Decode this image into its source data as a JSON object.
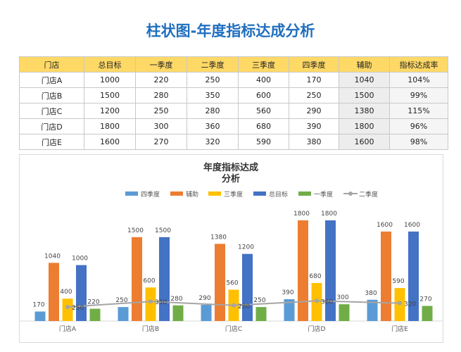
{
  "page_title": "柱状图-年度指标达成分析",
  "table": {
    "headers": [
      "门店",
      "总目标",
      "一季度",
      "二季度",
      "三季度",
      "四季度",
      "辅助",
      "指标达成率"
    ],
    "rows": [
      [
        "门店A",
        "1000",
        "220",
        "250",
        "400",
        "170",
        "1040",
        "104%"
      ],
      [
        "门店B",
        "1500",
        "280",
        "350",
        "600",
        "250",
        "1500",
        "99%"
      ],
      [
        "门店C",
        "1200",
        "250",
        "280",
        "560",
        "290",
        "1380",
        "115%"
      ],
      [
        "门店D",
        "1800",
        "300",
        "360",
        "680",
        "390",
        "1800",
        "96%"
      ],
      [
        "门店E",
        "1600",
        "270",
        "320",
        "590",
        "380",
        "1600",
        "98%"
      ]
    ]
  },
  "chart_data": {
    "type": "bar",
    "title_line1": "年度指标达成",
    "title_line2": "分析",
    "categories": [
      "门店A",
      "门店B",
      "门店C",
      "门店D",
      "门店E"
    ],
    "series": [
      {
        "name": "四季度",
        "type": "bar",
        "color": "#5b9bd5",
        "values": [
          170,
          250,
          290,
          390,
          380
        ]
      },
      {
        "name": "辅助",
        "type": "bar",
        "color": "#ed7d31",
        "values": [
          1040,
          1500,
          1380,
          1800,
          1600
        ]
      },
      {
        "name": "三季度",
        "type": "bar",
        "color": "#ffc000",
        "values": [
          400,
          600,
          560,
          680,
          590
        ]
      },
      {
        "name": "总目标",
        "type": "bar",
        "color": "#4472c4",
        "values": [
          1000,
          1500,
          1200,
          1800,
          1600
        ]
      },
      {
        "name": "一季度",
        "type": "bar",
        "color": "#70ad47",
        "values": [
          220,
          280,
          250,
          300,
          270
        ]
      },
      {
        "name": "二季度",
        "type": "line",
        "color": "#a5a5a5",
        "values": [
          250,
          350,
          280,
          360,
          320
        ]
      }
    ],
    "ylim": [
      0,
      1800
    ],
    "grid": false,
    "legend": "top"
  }
}
